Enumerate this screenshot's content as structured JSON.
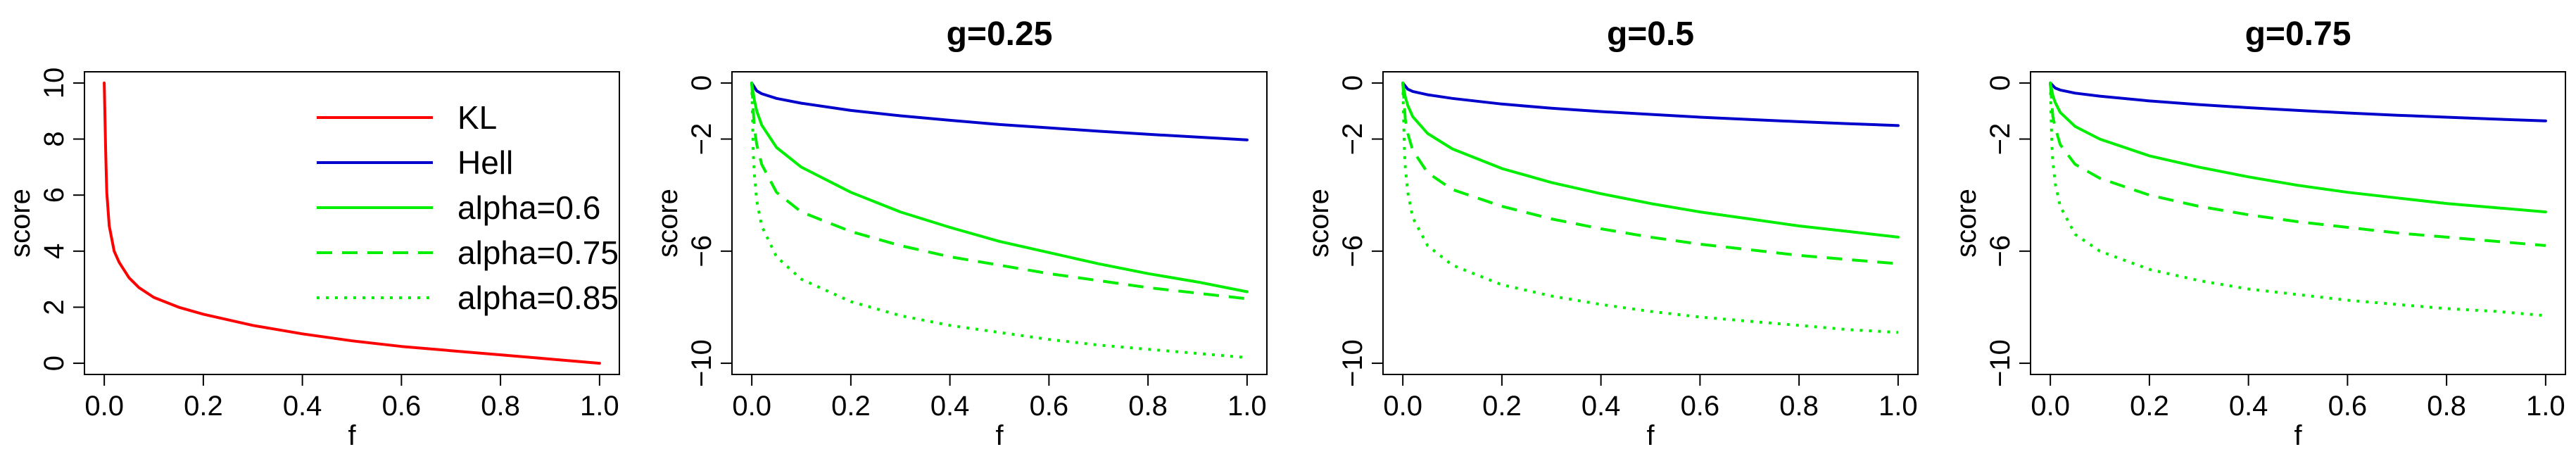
{
  "chart_data": [
    {
      "type": "line",
      "title": "",
      "xlabel": "f",
      "ylabel": "score",
      "xlim": [
        0,
        1
      ],
      "ylim": [
        0,
        10
      ],
      "x_ticks": [
        0.0,
        0.2,
        0.4,
        0.6,
        0.8,
        1.0
      ],
      "x_tick_labels": [
        "0.0",
        "0.2",
        "0.4",
        "0.6",
        "0.8",
        "1.0"
      ],
      "y_ticks": [
        0,
        2,
        4,
        6,
        8,
        10
      ],
      "y_tick_labels": [
        "0",
        "2",
        "4",
        "6",
        "8",
        "10"
      ],
      "grid": false,
      "legend": {
        "position": "top-right",
        "entries": [
          {
            "label": "KL",
            "color": "#ff0000",
            "dash": "solid"
          },
          {
            "label": "Hell",
            "color": "#0000cc",
            "dash": "solid"
          },
          {
            "label": "alpha=0.6",
            "color": "#00ee00",
            "dash": "solid"
          },
          {
            "label": "alpha=0.75",
            "color": "#00ee00",
            "dash": "dashed"
          },
          {
            "label": "alpha=0.85",
            "color": "#00ee00",
            "dash": "dotted"
          }
        ]
      },
      "series": [
        {
          "name": "KL",
          "color": "#ff0000",
          "dash": "solid",
          "x": [
            0,
            0.003,
            0.005,
            0.01,
            0.02,
            0.03,
            0.05,
            0.07,
            0.1,
            0.15,
            0.2,
            0.3,
            0.4,
            0.5,
            0.6,
            0.7,
            0.8,
            0.9,
            1.0
          ],
          "y": [
            10.0,
            7.4,
            6.1,
            4.9,
            4.0,
            3.6,
            3.05,
            2.7,
            2.35,
            2.0,
            1.75,
            1.35,
            1.05,
            0.8,
            0.6,
            0.45,
            0.3,
            0.15,
            0.0
          ]
        }
      ]
    },
    {
      "type": "line",
      "title": "g=0.25",
      "xlabel": "f",
      "ylabel": "score",
      "xlim": [
        0,
        1
      ],
      "ylim": [
        -10,
        0
      ],
      "x_ticks": [
        0.0,
        0.2,
        0.4,
        0.6,
        0.8,
        1.0
      ],
      "x_tick_labels": [
        "0.0",
        "0.2",
        "0.4",
        "0.6",
        "0.8",
        "1.0"
      ],
      "y_ticks": [
        -10,
        -6,
        -2,
        0
      ],
      "y_tick_labels": [
        "−10",
        "−6",
        "−2",
        "0"
      ],
      "grid": false,
      "series": [
        {
          "name": "Hell",
          "color": "#0000cc",
          "dash": "solid",
          "x": [
            0,
            0.01,
            0.02,
            0.05,
            0.1,
            0.2,
            0.3,
            0.4,
            0.5,
            0.6,
            0.7,
            0.8,
            0.9,
            1.0
          ],
          "y": [
            0,
            -0.28,
            -0.38,
            -0.55,
            -0.72,
            -0.98,
            -1.17,
            -1.33,
            -1.48,
            -1.6,
            -1.72,
            -1.83,
            -1.93,
            -2.03
          ]
        },
        {
          "name": "alpha=0.6",
          "color": "#00ee00",
          "dash": "solid",
          "x": [
            0,
            0.005,
            0.01,
            0.02,
            0.05,
            0.1,
            0.2,
            0.3,
            0.4,
            0.5,
            0.6,
            0.7,
            0.8,
            0.9,
            1.0
          ],
          "y": [
            0,
            -0.6,
            -1.0,
            -1.5,
            -2.3,
            -3.0,
            -3.9,
            -4.6,
            -5.15,
            -5.65,
            -6.05,
            -6.45,
            -6.8,
            -7.1,
            -7.45
          ]
        },
        {
          "name": "alpha=0.75",
          "color": "#00ee00",
          "dash": "dashed",
          "x": [
            0,
            0.005,
            0.01,
            0.02,
            0.05,
            0.1,
            0.2,
            0.3,
            0.4,
            0.5,
            0.6,
            0.7,
            0.8,
            0.9,
            1.0
          ],
          "y": [
            0,
            -1.6,
            -2.2,
            -2.9,
            -3.9,
            -4.6,
            -5.3,
            -5.8,
            -6.2,
            -6.5,
            -6.8,
            -7.05,
            -7.3,
            -7.5,
            -7.7
          ]
        },
        {
          "name": "alpha=0.85",
          "color": "#00ee00",
          "dash": "dotted",
          "x": [
            0,
            0.003,
            0.005,
            0.01,
            0.02,
            0.05,
            0.1,
            0.2,
            0.3,
            0.4,
            0.5,
            0.6,
            0.7,
            0.8,
            0.9,
            1.0
          ],
          "y": [
            0,
            -2.5,
            -3.2,
            -4.2,
            -5.1,
            -6.2,
            -7.0,
            -7.8,
            -8.3,
            -8.65,
            -8.9,
            -9.15,
            -9.35,
            -9.5,
            -9.65,
            -9.8
          ]
        }
      ]
    },
    {
      "type": "line",
      "title": "g=0.5",
      "xlabel": "f",
      "ylabel": "score",
      "xlim": [
        0,
        1
      ],
      "ylim": [
        -10,
        0
      ],
      "x_ticks": [
        0.0,
        0.2,
        0.4,
        0.6,
        0.8,
        1.0
      ],
      "x_tick_labels": [
        "0.0",
        "0.2",
        "0.4",
        "0.6",
        "0.8",
        "1.0"
      ],
      "y_ticks": [
        -10,
        -6,
        -2,
        0
      ],
      "y_tick_labels": [
        "−10",
        "−6",
        "−2",
        "0"
      ],
      "grid": false,
      "series": [
        {
          "name": "Hell",
          "color": "#0000cc",
          "dash": "solid",
          "x": [
            0,
            0.01,
            0.02,
            0.05,
            0.1,
            0.2,
            0.3,
            0.4,
            0.5,
            0.6,
            0.7,
            0.8,
            0.9,
            1.0
          ],
          "y": [
            0,
            -0.22,
            -0.3,
            -0.42,
            -0.55,
            -0.75,
            -0.9,
            -1.02,
            -1.12,
            -1.22,
            -1.3,
            -1.38,
            -1.45,
            -1.52
          ]
        },
        {
          "name": "alpha=0.6",
          "color": "#00ee00",
          "dash": "solid",
          "x": [
            0,
            0.005,
            0.01,
            0.02,
            0.05,
            0.1,
            0.2,
            0.3,
            0.4,
            0.5,
            0.6,
            0.7,
            0.8,
            0.9,
            1.0
          ],
          "y": [
            0,
            -0.5,
            -0.8,
            -1.2,
            -1.8,
            -2.35,
            -3.05,
            -3.55,
            -3.95,
            -4.3,
            -4.6,
            -4.85,
            -5.1,
            -5.3,
            -5.5
          ]
        },
        {
          "name": "alpha=0.75",
          "color": "#00ee00",
          "dash": "dashed",
          "x": [
            0,
            0.005,
            0.01,
            0.02,
            0.05,
            0.1,
            0.2,
            0.3,
            0.4,
            0.5,
            0.6,
            0.7,
            0.8,
            0.9,
            1.0
          ],
          "y": [
            0,
            -1.3,
            -1.8,
            -2.4,
            -3.2,
            -3.8,
            -4.4,
            -4.85,
            -5.2,
            -5.5,
            -5.75,
            -5.95,
            -6.15,
            -6.3,
            -6.45
          ]
        },
        {
          "name": "alpha=0.85",
          "color": "#00ee00",
          "dash": "dotted",
          "x": [
            0,
            0.003,
            0.005,
            0.01,
            0.02,
            0.05,
            0.1,
            0.2,
            0.3,
            0.4,
            0.5,
            0.6,
            0.7,
            0.8,
            0.9,
            1.0
          ],
          "y": [
            0,
            -2.3,
            -3.0,
            -3.9,
            -4.8,
            -5.8,
            -6.5,
            -7.2,
            -7.6,
            -7.9,
            -8.15,
            -8.35,
            -8.5,
            -8.65,
            -8.8,
            -8.9
          ]
        }
      ]
    },
    {
      "type": "line",
      "title": "g=0.75",
      "xlabel": "f",
      "ylabel": "score",
      "xlim": [
        0,
        1
      ],
      "ylim": [
        -10,
        0
      ],
      "x_ticks": [
        0.0,
        0.2,
        0.4,
        0.6,
        0.8,
        1.0
      ],
      "x_tick_labels": [
        "0.0",
        "0.2",
        "0.4",
        "0.6",
        "0.8",
        "1.0"
      ],
      "y_ticks": [
        -10,
        -6,
        -2,
        0
      ],
      "y_tick_labels": [
        "−10",
        "−6",
        "−2",
        "0"
      ],
      "grid": false,
      "series": [
        {
          "name": "Hell",
          "color": "#0000cc",
          "dash": "solid",
          "x": [
            0,
            0.01,
            0.02,
            0.05,
            0.1,
            0.2,
            0.3,
            0.4,
            0.5,
            0.6,
            0.7,
            0.8,
            0.9,
            1.0
          ],
          "y": [
            0,
            -0.18,
            -0.25,
            -0.36,
            -0.47,
            -0.64,
            -0.77,
            -0.88,
            -0.98,
            -1.07,
            -1.15,
            -1.22,
            -1.29,
            -1.35
          ]
        },
        {
          "name": "alpha=0.6",
          "color": "#00ee00",
          "dash": "solid",
          "x": [
            0,
            0.005,
            0.01,
            0.02,
            0.05,
            0.1,
            0.2,
            0.3,
            0.4,
            0.5,
            0.6,
            0.7,
            0.8,
            0.9,
            1.0
          ],
          "y": [
            0,
            -0.45,
            -0.7,
            -1.05,
            -1.55,
            -2.0,
            -2.6,
            -3.0,
            -3.35,
            -3.65,
            -3.9,
            -4.1,
            -4.3,
            -4.45,
            -4.6
          ]
        },
        {
          "name": "alpha=0.75",
          "color": "#00ee00",
          "dash": "dashed",
          "x": [
            0,
            0.005,
            0.01,
            0.02,
            0.05,
            0.1,
            0.2,
            0.3,
            0.4,
            0.5,
            0.6,
            0.7,
            0.8,
            0.9,
            1.0
          ],
          "y": [
            0,
            -1.2,
            -1.6,
            -2.2,
            -2.9,
            -3.4,
            -4.0,
            -4.4,
            -4.7,
            -4.95,
            -5.15,
            -5.35,
            -5.5,
            -5.65,
            -5.8
          ]
        },
        {
          "name": "alpha=0.85",
          "color": "#00ee00",
          "dash": "dotted",
          "x": [
            0,
            0.003,
            0.005,
            0.01,
            0.02,
            0.05,
            0.1,
            0.2,
            0.3,
            0.4,
            0.5,
            0.6,
            0.7,
            0.8,
            0.9,
            1.0
          ],
          "y": [
            0,
            -2.2,
            -2.8,
            -3.6,
            -4.4,
            -5.4,
            -6.0,
            -6.65,
            -7.05,
            -7.35,
            -7.55,
            -7.75,
            -7.9,
            -8.05,
            -8.15,
            -8.3
          ]
        }
      ]
    }
  ]
}
